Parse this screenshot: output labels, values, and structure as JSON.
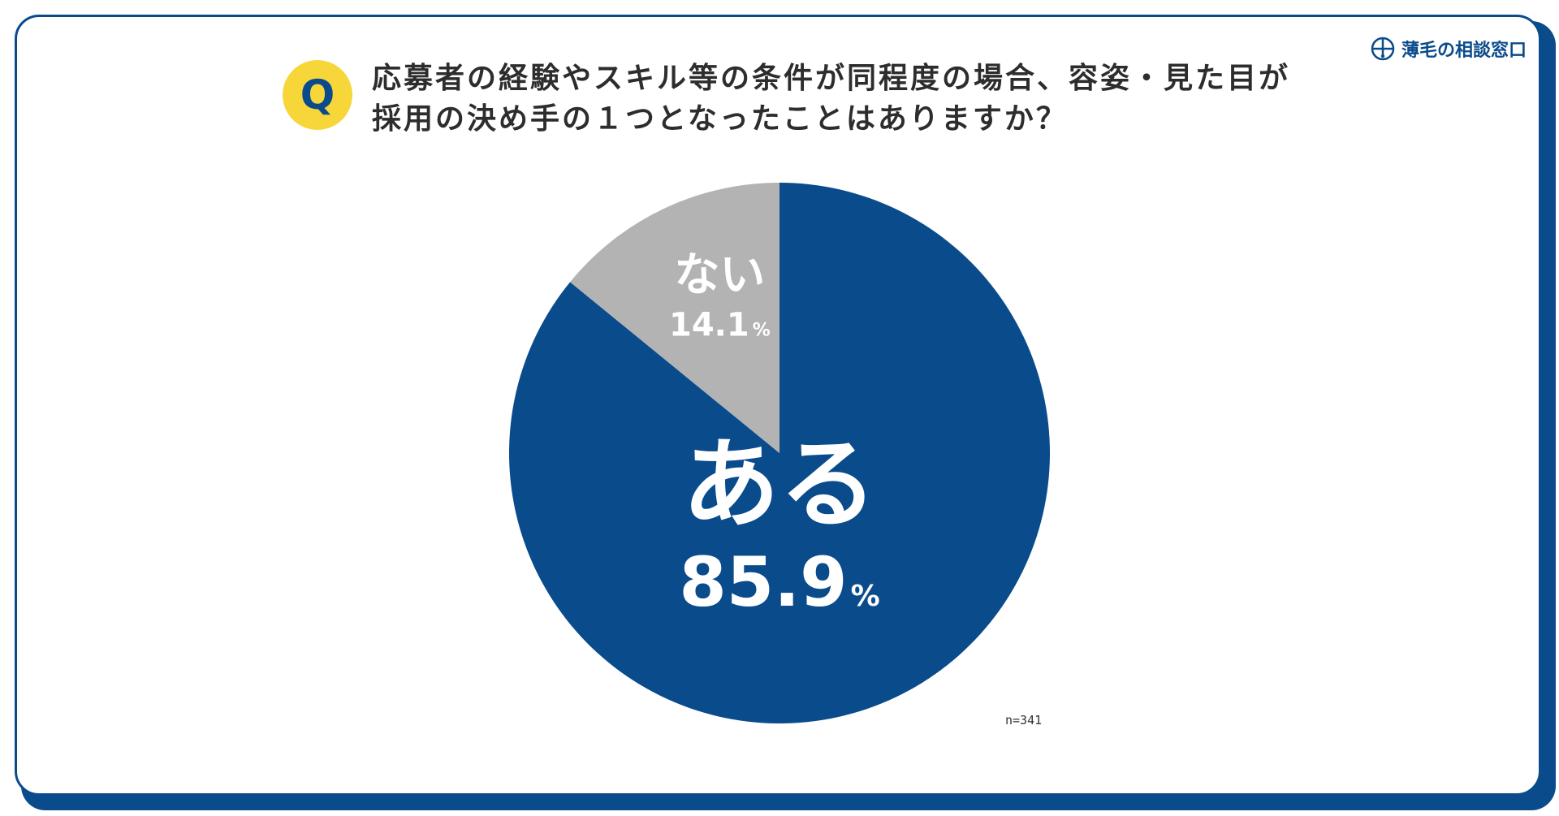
{
  "brand": {
    "name": "薄毛の相談窓口",
    "icon": "hair-follicle-logo-icon"
  },
  "question": {
    "badge": "Q",
    "line1": "応募者の経験やスキル等の条件が同程度の場合、容姿・見た目が",
    "line2": "採用の決め手の１つとなったことはありますか？"
  },
  "sample_size": "n=341",
  "colors": {
    "primary": "#0a4b8c",
    "secondary": "#b3b3b3",
    "accent": "#f7d63a",
    "label": "#ffffff"
  },
  "chart_data": {
    "type": "pie",
    "title": "応募者の経験やスキル等の条件が同程度の場合、容姿・見た目が採用の決め手の１つとなったことはありますか？",
    "slices": [
      {
        "label": "ある",
        "value": 85.9,
        "display": "85.9",
        "unit": "%",
        "color": "#0a4b8c"
      },
      {
        "label": "ない",
        "value": 14.1,
        "display": "14.1",
        "unit": "%",
        "color": "#b3b3b3"
      }
    ],
    "start": "12 o'clock",
    "direction": "clockwise",
    "note": "n=341"
  }
}
